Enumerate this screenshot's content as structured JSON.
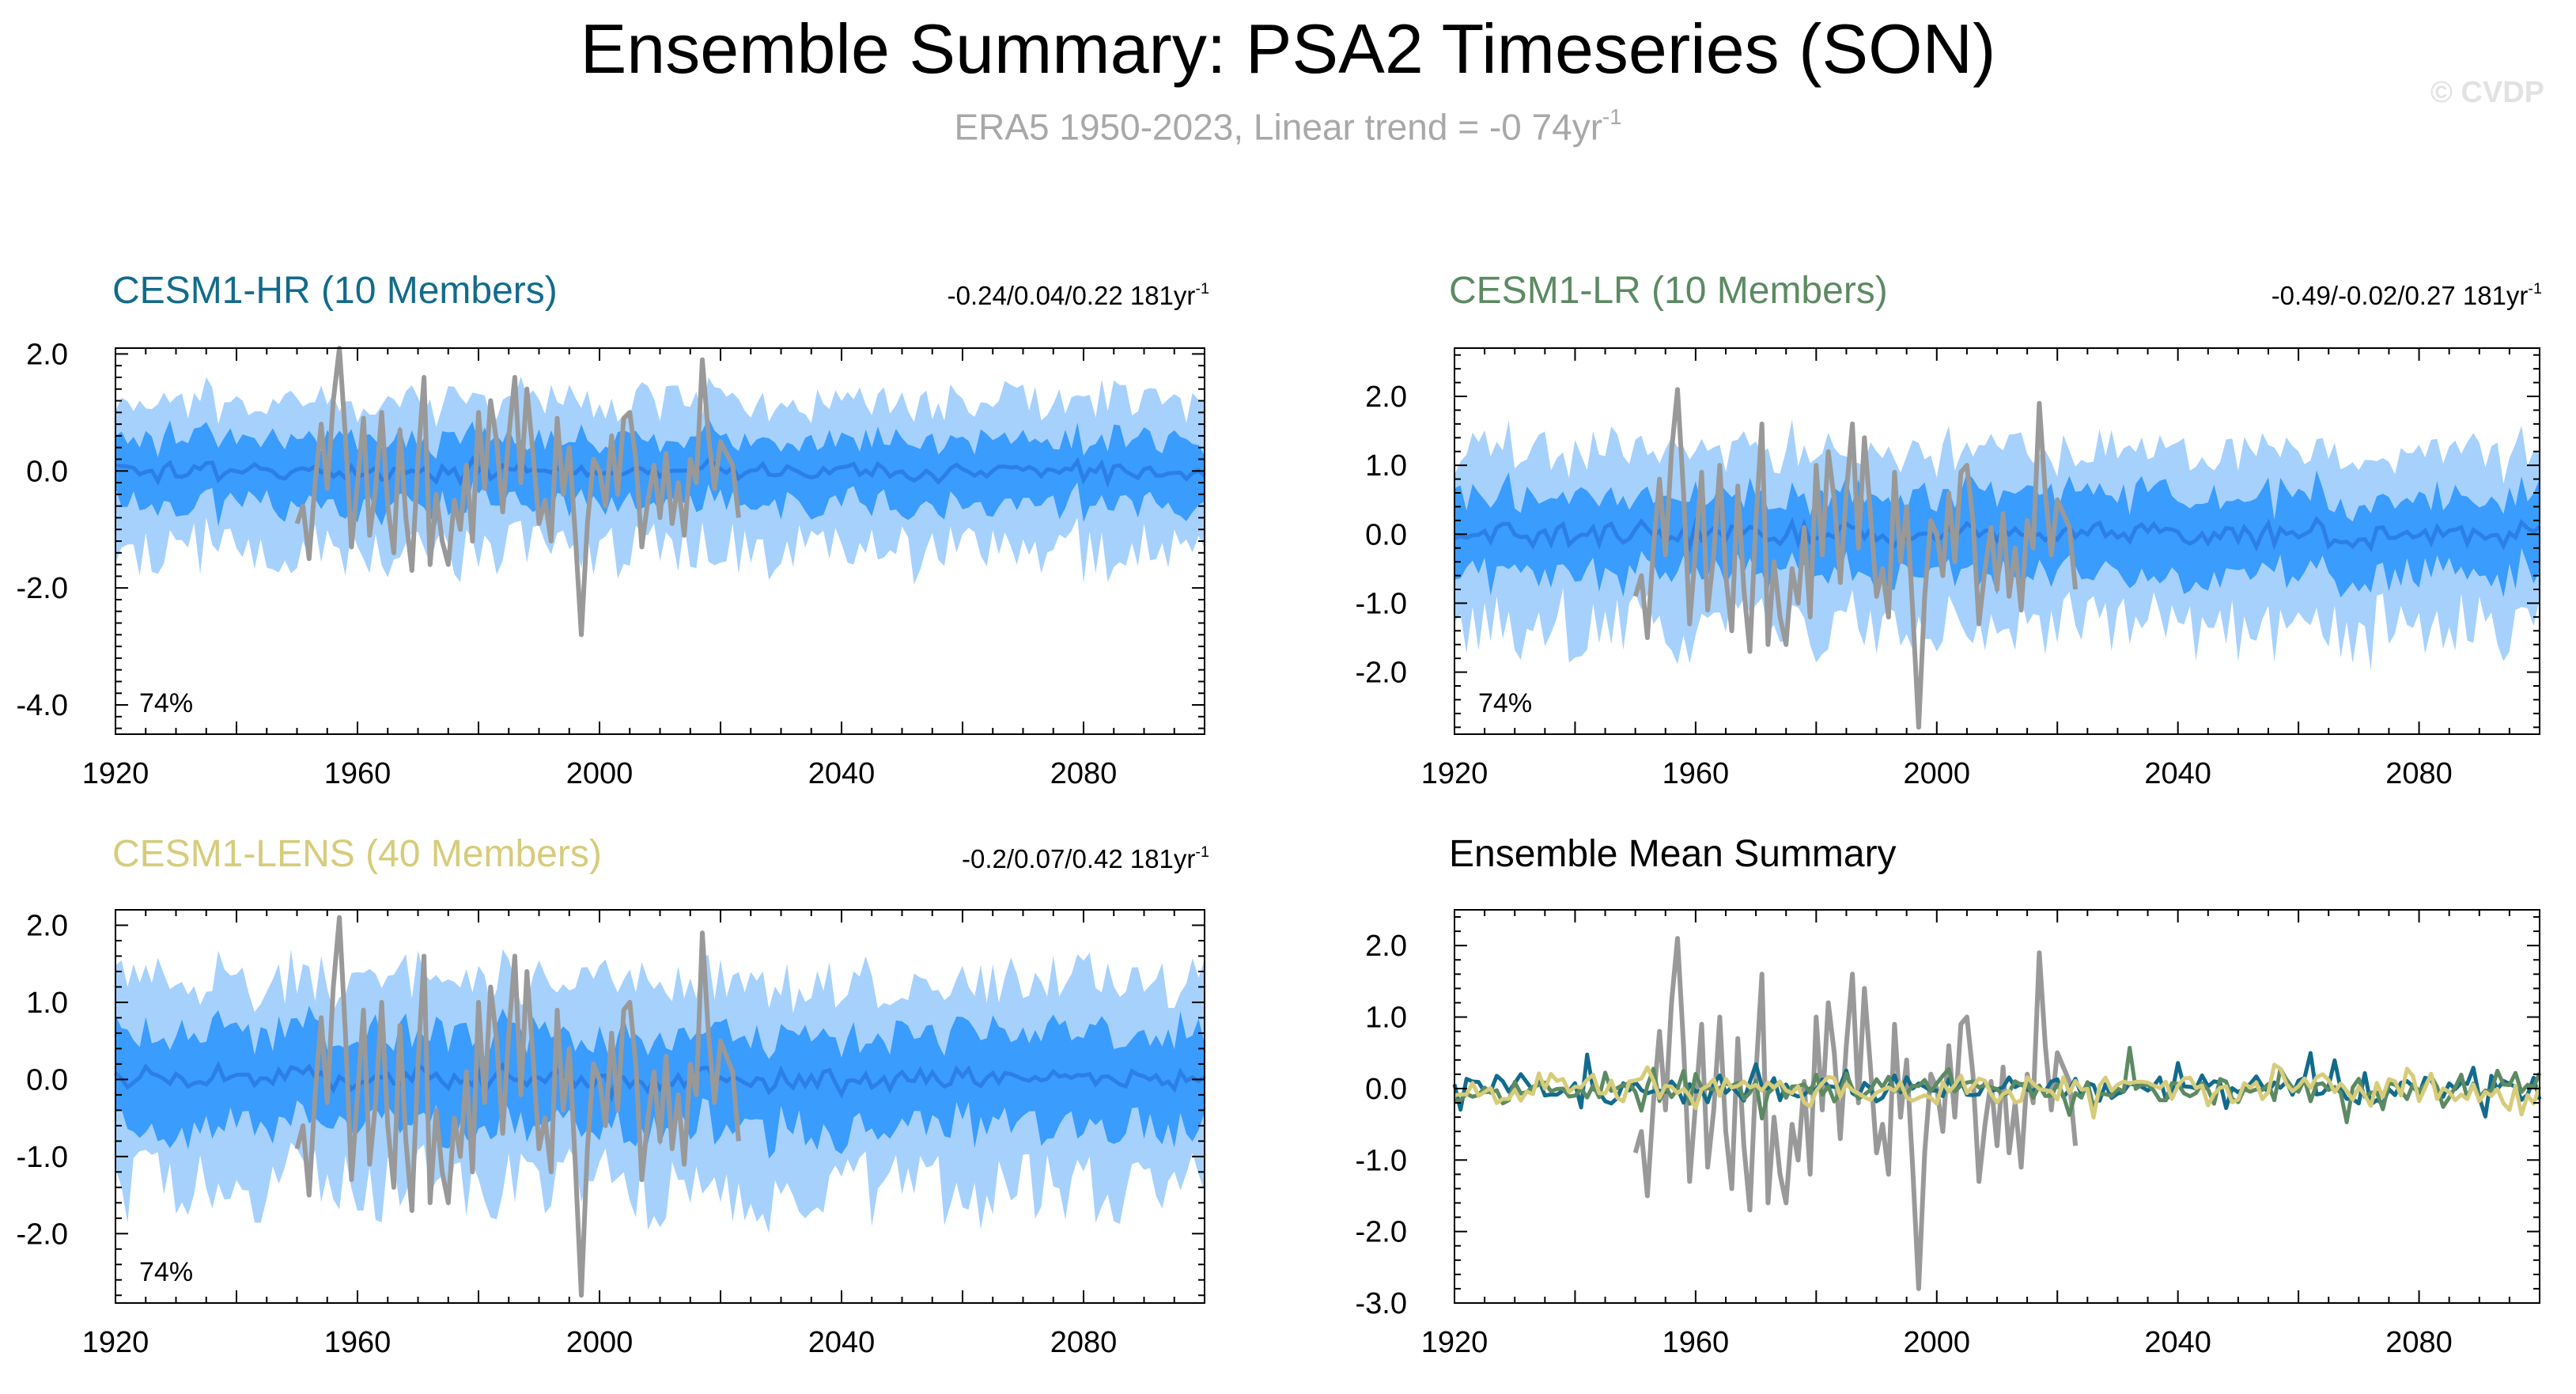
{
  "header": {
    "title": "Ensemble Summary: PSA2 Timeseries (SON)",
    "subtitle_main": "ERA5 1950-2023, Linear trend = -0 74yr",
    "subtitle_exp": "-1",
    "watermark": "© CVDP"
  },
  "colors": {
    "band_outer": "#a6d1fd",
    "band_inner": "#3a9cfd",
    "ensemble_mean_line": "#2b7fe6",
    "obs_line": "#999999",
    "hr_title": "#126b8c",
    "lr_title": "#5c8a62",
    "lens_title": "#d6cc7a",
    "mean_title": "#000000"
  },
  "chart_data": [
    {
      "type": "line",
      "panel": "hr",
      "title": "CESM1-HR (10 Members)",
      "stats": "-0.24/0.04/0.22 181yr",
      "stats_exp": "-1",
      "percent_label": "74%",
      "xlim": [
        1920,
        2100
      ],
      "ylim": [
        -4.5,
        2.1
      ],
      "yticks": [
        2.0,
        0.0,
        -2.0,
        -4.0
      ],
      "ytick_labels": [
        "2.0",
        "0.0",
        "-2.0",
        "-4.0"
      ],
      "xticks": [
        1920,
        1960,
        2000,
        2040,
        2080
      ],
      "xtick_labels": [
        "1920",
        "1960",
        "2000",
        "2040",
        "2080"
      ],
      "band_scale": {
        "outer": 1.0,
        "inner": 0.55,
        "mean": 0.12
      },
      "seed": 7
    },
    {
      "type": "line",
      "panel": "lr",
      "title": "CESM1-LR (10 Members)",
      "stats": "-0.49/-0.02/0.27 181yr",
      "stats_exp": "-1",
      "percent_label": "74%",
      "xlim": [
        1920,
        2100
      ],
      "ylim": [
        -2.9,
        2.7
      ],
      "yticks": [
        2.0,
        1.0,
        0.0,
        -1.0,
        -2.0
      ],
      "ytick_labels": [
        "2.0",
        "1.0",
        "0.0",
        "-1.0",
        "-2.0"
      ],
      "xticks": [
        1920,
        1960,
        2000,
        2040,
        2080
      ],
      "xtick_labels": [
        "1920",
        "1960",
        "2000",
        "2040",
        "2080"
      ],
      "band_scale": {
        "outer": 1.0,
        "inner": 0.55,
        "mean": 0.12
      },
      "seed": 13
    },
    {
      "type": "line",
      "panel": "lens",
      "title": "CESM1-LENS (40 Members)",
      "stats": "-0.2/0.07/0.42 181yr",
      "stats_exp": "-1",
      "percent_label": "74%",
      "xlim": [
        1920,
        2100
      ],
      "ylim": [
        -2.9,
        2.2
      ],
      "yticks": [
        2.0,
        1.0,
        0.0,
        -1.0,
        -2.0
      ],
      "ytick_labels": [
        "2.0",
        "1.0",
        "0.0",
        "-1.0",
        "-2.0"
      ],
      "xticks": [
        1920,
        1960,
        2000,
        2040,
        2080
      ],
      "xtick_labels": [
        "1920",
        "1960",
        "2000",
        "2040",
        "2080"
      ],
      "band_scale": {
        "outer": 1.05,
        "inner": 0.6,
        "mean": 0.12
      },
      "seed": 29
    },
    {
      "type": "line",
      "panel": "mean",
      "title": "Ensemble Mean Summary",
      "xlim": [
        1920,
        2100
      ],
      "ylim": [
        -3.0,
        2.5
      ],
      "yticks": [
        2.0,
        1.0,
        0.0,
        -1.0,
        -2.0,
        -3.0
      ],
      "ytick_labels": [
        "2.0",
        "1.0",
        "0.0",
        "-1.0",
        "-2.0",
        "-3.0"
      ],
      "xticks": [
        1920,
        1960,
        2000,
        2040,
        2080
      ],
      "xtick_labels": [
        "1920",
        "1960",
        "2000",
        "2040",
        "2080"
      ],
      "series": [
        {
          "name": "CESM1-HR",
          "color": "#126b8c",
          "seed": 41
        },
        {
          "name": "CESM1-LR",
          "color": "#5c8a62",
          "seed": 53
        },
        {
          "name": "CESM1-LENS",
          "color": "#d6cc7a",
          "seed": 67
        }
      ],
      "seed": 3
    }
  ],
  "observations": {
    "name": "ERA5",
    "years": [
      1950,
      1951,
      1952,
      1953,
      1954,
      1955,
      1956,
      1957,
      1958,
      1959,
      1960,
      1961,
      1962,
      1963,
      1964,
      1965,
      1966,
      1967,
      1968,
      1969,
      1970,
      1971,
      1972,
      1973,
      1974,
      1975,
      1976,
      1977,
      1978,
      1979,
      1980,
      1981,
      1982,
      1983,
      1984,
      1985,
      1986,
      1987,
      1988,
      1989,
      1990,
      1991,
      1992,
      1993,
      1994,
      1995,
      1996,
      1997,
      1998,
      1999,
      2000,
      2001,
      2002,
      2003,
      2004,
      2005,
      2006,
      2007,
      2008,
      2009,
      2010,
      2011,
      2012,
      2013,
      2014,
      2015,
      2016,
      2017,
      2018,
      2019,
      2020,
      2021,
      2022,
      2023
    ],
    "values": [
      -0.9,
      -0.6,
      -1.5,
      -0.2,
      0.8,
      -0.3,
      1.2,
      2.1,
      0.6,
      -1.3,
      -0.2,
      0.9,
      -1.1,
      -0.3,
      1.0,
      -0.6,
      -1.4,
      0.7,
      -0.8,
      -1.7,
      0.2,
      1.6,
      -1.6,
      -0.4,
      -1.2,
      -1.6,
      -0.5,
      -1.0,
      0.1,
      -1.2,
      1.0,
      -0.3,
      1.2,
      0.5,
      -0.7,
      0.6,
      1.6,
      -0.2,
      1.4,
      0.3,
      -0.9,
      -0.5,
      -1.2,
      0.9,
      -0.4,
      0.4,
      -1.1,
      -2.8,
      -0.9,
      0.2,
      0.0,
      -0.6,
      0.6,
      -0.4,
      0.9,
      1.0,
      0.2,
      -1.3,
      -0.5,
      0.1,
      -0.8,
      0.3,
      -0.9,
      -0.2,
      -1.1,
      0.2,
      -0.2,
      1.9,
      0.6,
      -0.3,
      0.5,
      0.3,
      0.1,
      -0.8
    ]
  }
}
